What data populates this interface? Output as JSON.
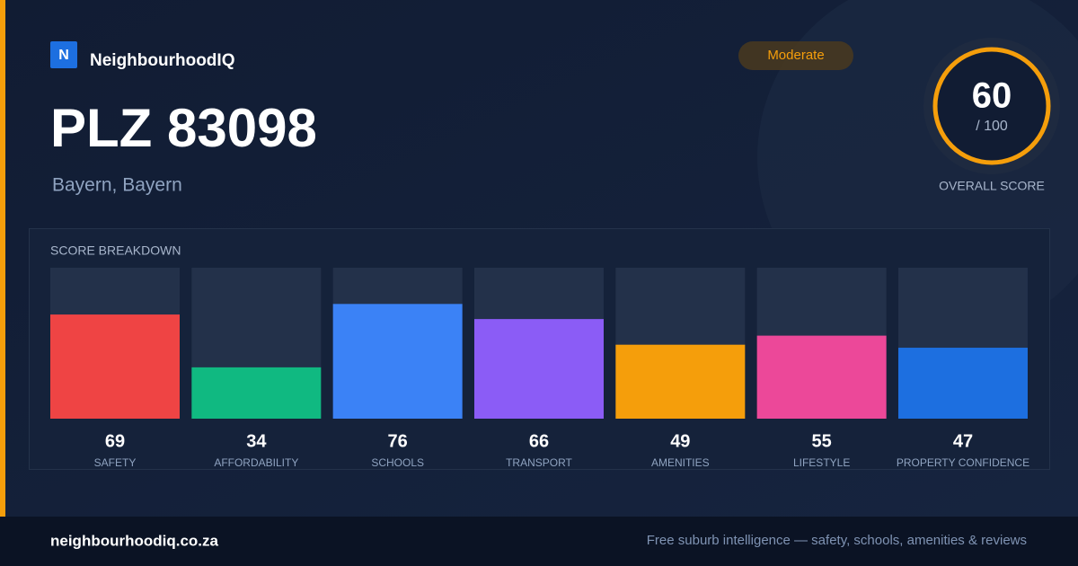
{
  "brand": {
    "logo": "N",
    "name": "NeighbourhoodIQ"
  },
  "header": {
    "title": "PLZ 83098",
    "subtitle": "Bayern, Bayern",
    "badge": "Moderate"
  },
  "score": {
    "value": "60",
    "max": "/ 100",
    "label": "OVERALL SCORE"
  },
  "chart_data": {
    "type": "bar",
    "title": "SCORE BREAKDOWN",
    "categories": [
      "SAFETY",
      "AFFORDABILITY",
      "SCHOOLS",
      "TRANSPORT",
      "AMENITIES",
      "LIFESTYLE",
      "PROPERTY CONFIDENCE"
    ],
    "values": [
      69,
      34,
      76,
      66,
      49,
      55,
      47
    ],
    "colors": [
      "#ef4444",
      "#10b981",
      "#3b82f6",
      "#8b5cf6",
      "#f59e0b",
      "#ec4899",
      "#1d6fe0"
    ],
    "ylim": [
      0,
      100
    ]
  },
  "footer": {
    "site": "neighbourhoodiq.co.za",
    "tagline": "Free suburb intelligence — safety, schools, amenities & reviews"
  }
}
